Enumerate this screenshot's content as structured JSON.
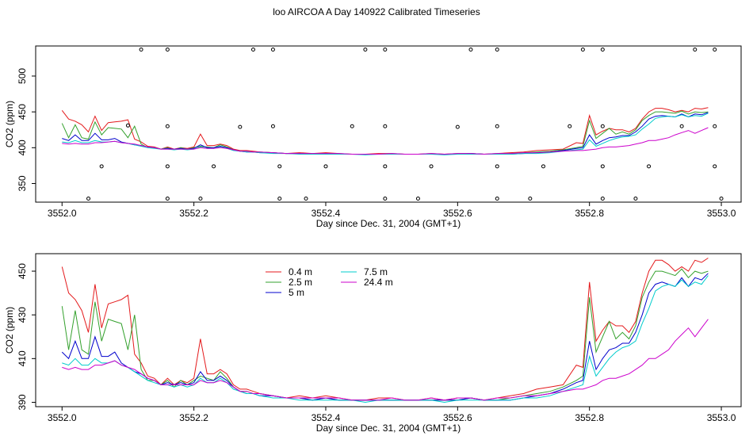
{
  "page_title": "loo AIRCOA A  Day 140922  Calibrated Timeseries",
  "chart_data": [
    {
      "type": "scatter+line",
      "xlabel": "Day since Dec. 31, 2004 (GMT+1)",
      "ylabel": "CO2 (ppm)",
      "xlim": [
        3551.96,
        3553.03
      ],
      "ylim": [
        324,
        542
      ],
      "xticks": [
        "3552.0",
        "3552.2",
        "3552.4",
        "3552.6",
        "3552.8",
        "3553.0"
      ],
      "xtick_values": [
        3552.0,
        3552.2,
        3552.4,
        3552.6,
        3552.8,
        3553.0
      ],
      "yticks": [
        "350",
        "400",
        "450",
        "500"
      ],
      "ytick_values": [
        350,
        400,
        450,
        500
      ],
      "grid": false,
      "calibration_points": [
        [
          3552.04,
          329
        ],
        [
          3552.06,
          374
        ],
        [
          3552.1,
          431
        ],
        [
          3552.12,
          537
        ],
        [
          3552.16,
          537
        ],
        [
          3552.16,
          430
        ],
        [
          3552.16,
          374
        ],
        [
          3552.16,
          329
        ],
        [
          3552.21,
          329
        ],
        [
          3552.23,
          374
        ],
        [
          3552.27,
          429
        ],
        [
          3552.29,
          537
        ],
        [
          3552.32,
          537
        ],
        [
          3552.32,
          430
        ],
        [
          3552.33,
          374
        ],
        [
          3552.33,
          329
        ],
        [
          3552.37,
          329
        ],
        [
          3552.4,
          374
        ],
        [
          3552.44,
          430
        ],
        [
          3552.46,
          537
        ],
        [
          3552.49,
          537
        ],
        [
          3552.49,
          430
        ],
        [
          3552.49,
          374
        ],
        [
          3552.49,
          329
        ],
        [
          3552.54,
          329
        ],
        [
          3552.56,
          374
        ],
        [
          3552.6,
          429
        ],
        [
          3552.62,
          537
        ],
        [
          3552.66,
          537
        ],
        [
          3552.66,
          430
        ],
        [
          3552.66,
          374
        ],
        [
          3552.66,
          329
        ],
        [
          3552.71,
          329
        ],
        [
          3552.73,
          374
        ],
        [
          3552.77,
          430
        ],
        [
          3552.79,
          537
        ],
        [
          3552.82,
          537
        ],
        [
          3552.82,
          430
        ],
        [
          3552.82,
          374
        ],
        [
          3552.82,
          329
        ],
        [
          3552.87,
          329
        ],
        [
          3552.89,
          374
        ],
        [
          3552.94,
          430
        ],
        [
          3552.96,
          537
        ],
        [
          3552.99,
          537
        ],
        [
          3552.99,
          430
        ],
        [
          3552.99,
          374
        ],
        [
          3553.0,
          329
        ]
      ],
      "series_ref": "shared"
    },
    {
      "type": "line",
      "xlabel": "Day since Dec. 31, 2004 (GMT+1)",
      "ylabel": "CO2 (ppm)",
      "xlim": [
        3551.96,
        3553.03
      ],
      "ylim": [
        388,
        458
      ],
      "xticks": [
        "3552.0",
        "3552.2",
        "3552.4",
        "3552.6",
        "3552.8",
        "3553.0"
      ],
      "xtick_values": [
        3552.0,
        3552.2,
        3552.4,
        3552.6,
        3552.8,
        3553.0
      ],
      "yticks": [
        "390",
        "410",
        "430",
        "450"
      ],
      "ytick_values": [
        390,
        410,
        430,
        450
      ],
      "grid": false,
      "legend": {
        "placement": "top-left",
        "entries": [
          {
            "label": "0.4 m",
            "color": "#e41a1c"
          },
          {
            "label": "2.5 m",
            "color": "#33a02c"
          },
          {
            "label": "5 m",
            "color": "#0000cc"
          },
          {
            "label": "7.5 m",
            "color": "#00cccc"
          },
          {
            "label": "24.4 m",
            "color": "#cc00cc"
          }
        ]
      },
      "series_ref": "shared"
    }
  ],
  "series": {
    "x": [
      3552.0,
      3552.01,
      3552.02,
      3552.03,
      3552.04,
      3552.05,
      3552.06,
      3552.07,
      3552.08,
      3552.09,
      3552.1,
      3552.11,
      3552.12,
      3552.13,
      3552.14,
      3552.15,
      3552.16,
      3552.17,
      3552.18,
      3552.19,
      3552.2,
      3552.21,
      3552.22,
      3552.23,
      3552.24,
      3552.25,
      3552.26,
      3552.27,
      3552.28,
      3552.29,
      3552.3,
      3552.32,
      3552.34,
      3552.36,
      3552.38,
      3552.4,
      3552.42,
      3552.44,
      3552.46,
      3552.48,
      3552.5,
      3552.52,
      3552.54,
      3552.56,
      3552.58,
      3552.6,
      3552.62,
      3552.64,
      3552.66,
      3552.68,
      3552.7,
      3552.72,
      3552.74,
      3552.76,
      3552.78,
      3552.79,
      3552.8,
      3552.81,
      3552.82,
      3552.83,
      3552.84,
      3552.85,
      3552.86,
      3552.87,
      3552.88,
      3552.89,
      3552.9,
      3552.91,
      3552.92,
      3552.93,
      3552.94,
      3552.95,
      3552.96,
      3552.97,
      3552.98
    ],
    "lines": [
      {
        "name": "0.4 m",
        "color": "#e41a1c",
        "values": [
          452,
          440,
          437,
          432,
          422,
          444,
          424,
          435,
          436,
          437,
          439,
          412,
          408,
          402,
          401,
          398,
          401,
          398,
          400,
          399,
          401,
          419,
          403,
          403,
          405,
          403,
          398,
          396,
          396,
          395,
          394,
          393,
          392,
          393,
          392,
          393,
          392,
          391,
          391,
          392,
          392,
          391,
          391,
          392,
          391,
          392,
          392,
          391,
          392,
          393,
          394,
          396,
          397,
          398,
          407,
          406,
          445,
          418,
          423,
          427,
          425,
          425,
          422,
          427,
          440,
          450,
          455,
          455,
          453,
          450,
          452,
          450,
          455,
          454,
          456
        ]
      },
      {
        "name": "2.5 m",
        "color": "#33a02c",
        "values": [
          434,
          414,
          432,
          414,
          412,
          436,
          418,
          428,
          427,
          426,
          414,
          430,
          405,
          400,
          400,
          398,
          400,
          397,
          400,
          398,
          400,
          402,
          401,
          400,
          404,
          401,
          397,
          395,
          395,
          394,
          394,
          393,
          392,
          392,
          391,
          392,
          391,
          391,
          391,
          391,
          391,
          391,
          391,
          391,
          391,
          391,
          392,
          391,
          391,
          392,
          393,
          394,
          395,
          397,
          400,
          402,
          438,
          413,
          420,
          427,
          419,
          422,
          419,
          425,
          438,
          445,
          450,
          450,
          449,
          448,
          451,
          447,
          450,
          449,
          450
        ]
      },
      {
        "name": "5 m",
        "color": "#0000cc",
        "values": [
          413,
          410,
          418,
          410,
          410,
          420,
          411,
          411,
          413,
          408,
          406,
          404,
          403,
          401,
          400,
          398,
          399,
          398,
          399,
          398,
          399,
          404,
          400,
          400,
          402,
          400,
          397,
          395,
          394,
          394,
          393,
          393,
          392,
          392,
          391,
          392,
          391,
          391,
          391,
          391,
          391,
          391,
          391,
          391,
          391,
          391,
          392,
          391,
          391,
          391,
          392,
          393,
          394,
          396,
          399,
          400,
          418,
          405,
          410,
          414,
          415,
          417,
          417,
          422,
          430,
          440,
          444,
          445,
          444,
          443,
          447,
          443,
          447,
          446,
          449
        ]
      },
      {
        "name": "7.5 m",
        "color": "#00cccc",
        "values": [
          408,
          407,
          410,
          407,
          407,
          410,
          408,
          408,
          409,
          407,
          406,
          404,
          402,
          400,
          399,
          398,
          398,
          397,
          398,
          397,
          398,
          401,
          399,
          399,
          401,
          399,
          396,
          395,
          394,
          394,
          393,
          392,
          392,
          391,
          391,
          391,
          391,
          391,
          390,
          391,
          391,
          391,
          391,
          391,
          390,
          391,
          391,
          391,
          391,
          391,
          392,
          392,
          393,
          395,
          397,
          398,
          411,
          402,
          406,
          410,
          413,
          415,
          416,
          418,
          426,
          433,
          441,
          443,
          444,
          443,
          446,
          443,
          445,
          444,
          448
        ]
      },
      {
        "name": "24.4 m",
        "color": "#cc00cc",
        "values": [
          406,
          405,
          406,
          405,
          405,
          407,
          407,
          408,
          409,
          407,
          406,
          405,
          403,
          401,
          400,
          398,
          398,
          398,
          398,
          398,
          398,
          400,
          399,
          399,
          400,
          399,
          397,
          395,
          395,
          394,
          394,
          393,
          392,
          392,
          392,
          392,
          392,
          391,
          391,
          391,
          392,
          391,
          391,
          392,
          391,
          392,
          392,
          391,
          392,
          392,
          393,
          393,
          394,
          395,
          396,
          396,
          397,
          398,
          400,
          401,
          401,
          402,
          403,
          405,
          407,
          410,
          410,
          412,
          414,
          418,
          421,
          424,
          420,
          424,
          428
        ]
      }
    ]
  }
}
